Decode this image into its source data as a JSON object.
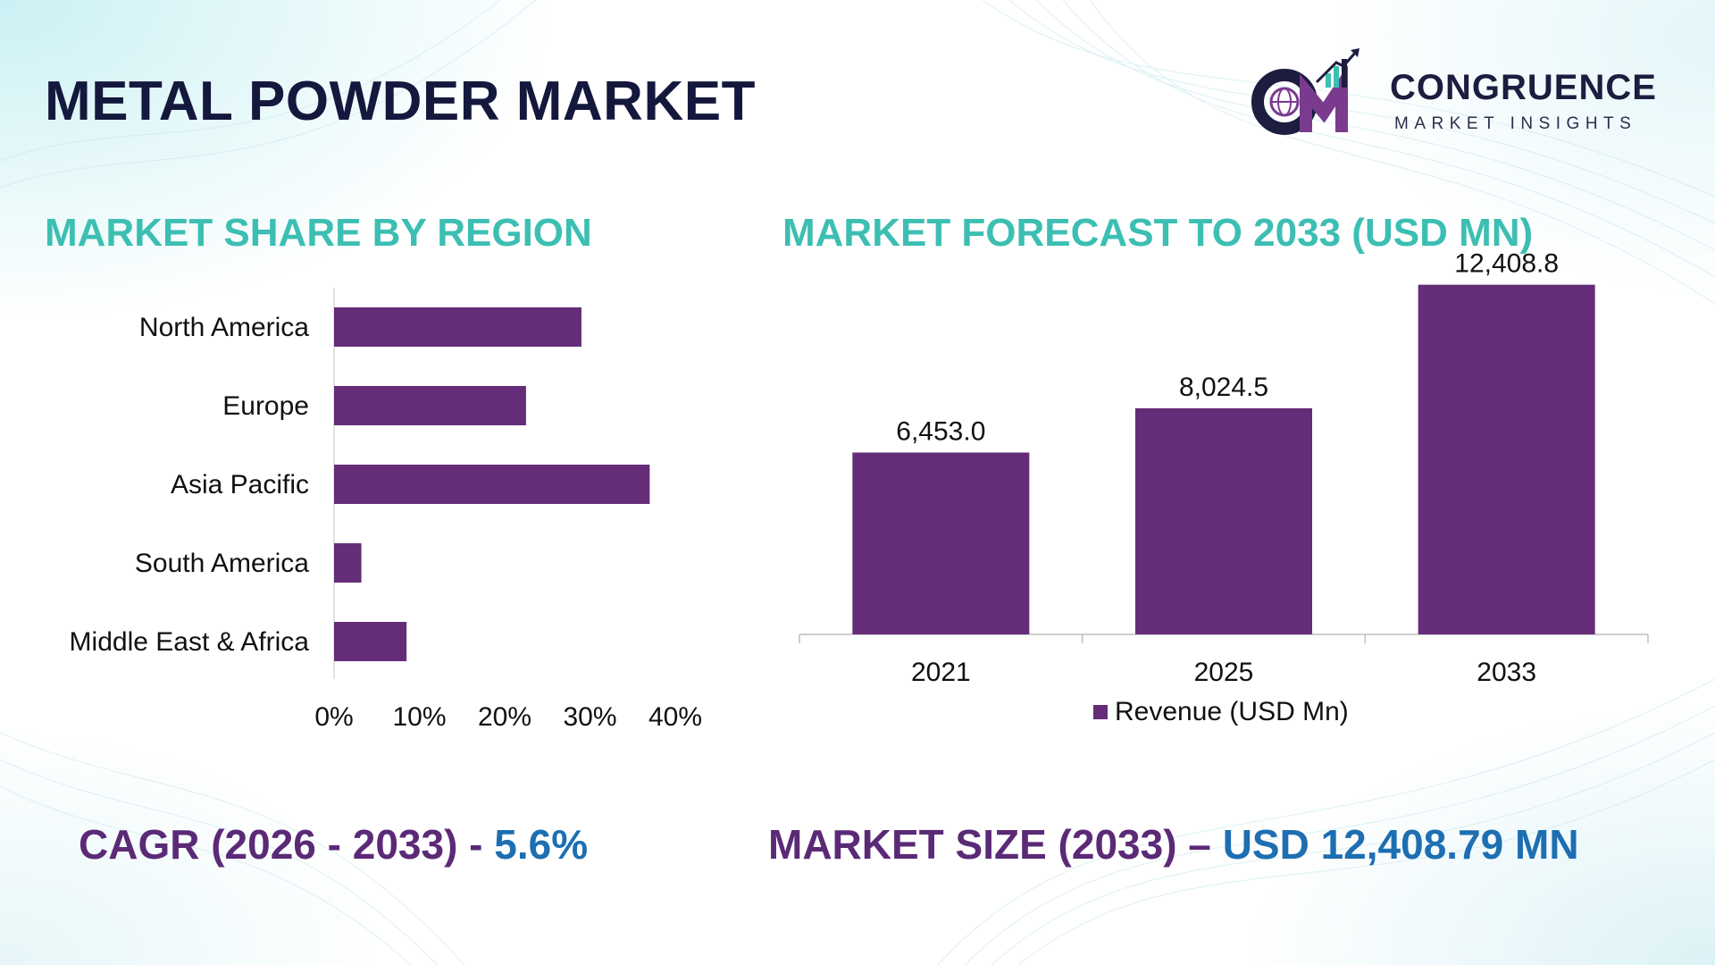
{
  "page": {
    "title": "METAL POWDER MARKET"
  },
  "logo": {
    "name": "CONGRUENCE",
    "tagline": "MARKET INSIGHTS",
    "mark_text": "CM"
  },
  "left_section": {
    "title": "MARKET SHARE BY REGION"
  },
  "right_section": {
    "title": "MARKET FORECAST TO 2033 (USD MN)"
  },
  "footer": {
    "cagr_label": "CAGR (2026 - 2033) - ",
    "cagr_value": "5.6%",
    "size_label": "MARKET SIZE (2033) – ",
    "size_value": "USD 12,408.79 MN"
  },
  "colors": {
    "bar": "#652d78",
    "section_title": "#3cbfb2",
    "footer_label": "#5b2a77",
    "footer_value": "#1d6fb2",
    "title": "#15183d"
  },
  "chart_data": [
    {
      "type": "bar",
      "orientation": "horizontal",
      "title": "MARKET SHARE BY REGION",
      "categories": [
        "North America",
        "Europe",
        "Asia Pacific",
        "South America",
        "Middle East & Africa"
      ],
      "values": [
        29,
        22.5,
        37,
        3.2,
        8.5
      ],
      "unit": "%",
      "xlim": [
        0,
        40
      ],
      "xticks": [
        "0%",
        "10%",
        "20%",
        "30%",
        "40%"
      ],
      "grid": false
    },
    {
      "type": "bar",
      "orientation": "vertical",
      "title": "MARKET FORECAST TO 2033 (USD MN)",
      "categories": [
        "2021",
        "2025",
        "2033"
      ],
      "series": [
        {
          "name": "Revenue (USD Mn)",
          "values": [
            6453.0,
            8024.5,
            12408.8
          ],
          "labels": [
            "6,453.0",
            "8,024.5",
            "12,408.8"
          ]
        }
      ],
      "ylim": [
        0,
        13000
      ],
      "legend": "bottom",
      "grid": false
    }
  ]
}
